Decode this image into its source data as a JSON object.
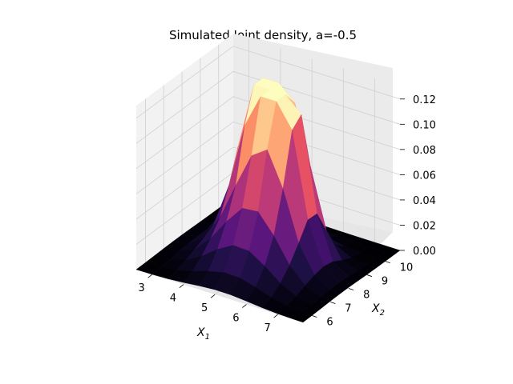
{
  "chart_data": {
    "type": "surface3d",
    "title": "Simulated Joint density, a=-0.5",
    "xlabel": "X1",
    "xlabel_main": "X",
    "xlabel_sub": "1",
    "ylabel": "X2",
    "ylabel_main": "X",
    "ylabel_sub": "2",
    "colormap": "magma",
    "xlim": [
      2.5,
      7.8
    ],
    "ylim": [
      5.5,
      10.8
    ],
    "zlim": [
      0,
      0.13
    ],
    "xticks": [
      3,
      4,
      5,
      6,
      7
    ],
    "yticks": [
      6,
      7,
      8,
      9,
      10
    ],
    "zticks": [
      0.0,
      0.02,
      0.04,
      0.06,
      0.08,
      0.1,
      0.12
    ],
    "zticklabels": [
      "0.00",
      "0.02",
      "0.04",
      "0.06",
      "0.08",
      "0.10",
      "0.12"
    ],
    "xticklabels": [
      "3",
      "4",
      "5",
      "6",
      "7"
    ],
    "yticklabels": [
      "6",
      "7",
      "8",
      "9",
      "10"
    ],
    "x": [
      2.5,
      3.0,
      3.5,
      4.0,
      4.5,
      5.0,
      5.5,
      6.0,
      6.5,
      7.0,
      7.5,
      7.8
    ],
    "y": [
      5.5,
      6.0,
      6.5,
      7.0,
      7.5,
      8.0,
      8.5,
      9.0,
      9.5,
      10.0,
      10.5,
      10.8
    ],
    "z_peaks": [
      {
        "x": 4.6,
        "y": 8.8,
        "height": 0.125,
        "sx": 0.55,
        "sy": 0.6
      },
      {
        "x": 5.6,
        "y": 8.4,
        "height": 0.118,
        "sx": 0.55,
        "sy": 0.6
      },
      {
        "x": 5.2,
        "y": 7.6,
        "height": 0.06,
        "sx": 0.9,
        "sy": 0.9
      }
    ]
  }
}
